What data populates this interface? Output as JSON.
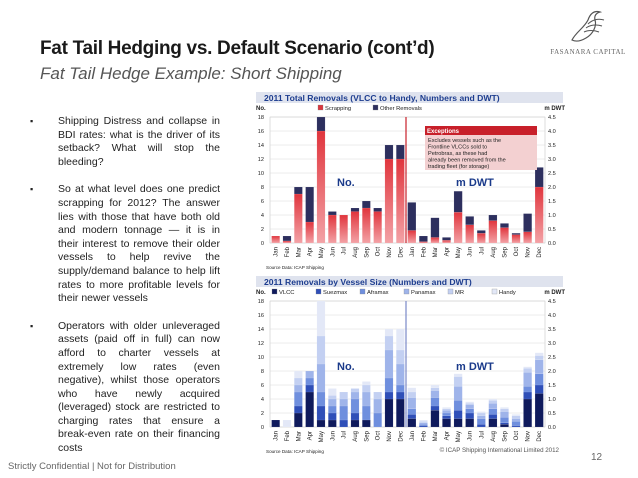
{
  "slide": {
    "title": "Fat Tail Hedging vs. Default Scenario (cont’d)",
    "subtitle": "Fat Tail Hedge Example: Short Shipping",
    "footer": "Strictly Confidential | Not for Distribution",
    "page_number": "12",
    "logo_name": "FASANARA CAPITAL",
    "bullet_mark": "▪",
    "bullets": [
      "Shipping Distress and collapse in BDI rates: what is the driver of its setback? What will stop the bleeding?",
      "So at what level does one predict scrapping for 2012? The answer lies with those that have both old and modern tonnage — it is in their interest to remove their older vessels to help revive the supply/demand balance to help lift rates to more profitable levels for their newer vessels",
      "Operators with older unleveraged assets (paid off in full) can now afford to charter vessels at extremely low rates (even negative), whilst those operators who have newly acquired (leveraged) stock are restricted to charging rates that ensure a break-even rate on their financing costs"
    ]
  },
  "chart_data": [
    {
      "type": "bar",
      "stacked": true,
      "title": "2011 Total Removals (VLCC to Handy, Numbers and DWT)",
      "left_axis_label": "No.",
      "right_axis_label": "m DWT",
      "left_panel_label": "No.",
      "right_panel_label": "m DWT",
      "left_ticks": [
        "0",
        "2",
        "4",
        "6",
        "8",
        "10",
        "12",
        "14",
        "16",
        "18"
      ],
      "right_ticks": [
        "0.0",
        "0.5",
        "1.0",
        "1.5",
        "2.0",
        "2.5",
        "3.0",
        "3.5",
        "4.0",
        "4.5"
      ],
      "left_ylim": [
        0,
        18
      ],
      "right_ylim": [
        0,
        4.5
      ],
      "categories": [
        "Jan",
        "Feb",
        "Mar",
        "Apr",
        "May",
        "Jun",
        "Jul",
        "Aug",
        "Sep",
        "Oct",
        "Nov",
        "Dec"
      ],
      "source": "Source Data: ICAP Shipping",
      "annotation_title": "Exceptions",
      "annotation_text": "Excludes vessels such as the Frontline VLCCs sold to Petrobras, as these had already been removed from the trading fleet (for storage)",
      "grid": true,
      "legend_position": "top-center",
      "series": [
        {
          "name": "Scrapping",
          "color": "#d9363e",
          "left_values": [
            1,
            0.3,
            7,
            3,
            16,
            4,
            4,
            4.5,
            5,
            4.5,
            12,
            12
          ],
          "right_values": [
            0.45,
            0.05,
            0.2,
            0.1,
            1.1,
            0.65,
            0.35,
            0.8,
            0.55,
            0.3,
            0.4,
            2.0
          ]
        },
        {
          "name": "Other Removals",
          "color": "#2d2f5e",
          "left_values": [
            0,
            0.7,
            1,
            5,
            2,
            0.5,
            0,
            0.5,
            1,
            0.5,
            2,
            2
          ],
          "right_values": [
            1.0,
            0.2,
            0.7,
            0.1,
            0.75,
            0.3,
            0.1,
            0.2,
            0.15,
            0.05,
            0.65,
            0.7
          ]
        }
      ]
    },
    {
      "type": "bar",
      "stacked": true,
      "title": "2011 Removals by Vessel Size (Numbers and DWT)",
      "left_axis_label": "No.",
      "right_axis_label": "m DWT",
      "left_panel_label": "No.",
      "right_panel_label": "m DWT",
      "left_ticks": [
        "0",
        "2",
        "4",
        "6",
        "8",
        "10",
        "12",
        "14",
        "16",
        "18"
      ],
      "right_ticks": [
        "0.0",
        "0.5",
        "1.0",
        "1.5",
        "2.0",
        "2.5",
        "3.0",
        "3.5",
        "4.0",
        "4.5"
      ],
      "left_ylim": [
        0,
        18
      ],
      "right_ylim": [
        0,
        4.5
      ],
      "categories": [
        "Jan",
        "Feb",
        "Mar",
        "Apr",
        "May",
        "Jun",
        "Jul",
        "Aug",
        "Sep",
        "Oct",
        "Nov",
        "Dec"
      ],
      "source": "Source Data: ICAP Shipping",
      "copyright": "© ICAP Shipping International Limited 2012",
      "grid": true,
      "legend_position": "top",
      "series": [
        {
          "name": "VLCC",
          "color": "#0f1a5c",
          "left_values": [
            1,
            0,
            2,
            5,
            1,
            1,
            0,
            1,
            1,
            0,
            4,
            4
          ],
          "right_values": [
            0.3,
            0,
            0.6,
            0.3,
            0.3,
            0.3,
            0,
            0.3,
            0.1,
            0,
            1.0,
            1.2
          ]
        },
        {
          "name": "Suezmax",
          "color": "#2f4fb8",
          "left_values": [
            0,
            0,
            1,
            1,
            2,
            1,
            1,
            1,
            0,
            0,
            1,
            1
          ],
          "right_values": [
            0.15,
            0.05,
            0.15,
            0.1,
            0.3,
            0.2,
            0.1,
            0.15,
            0.05,
            0.05,
            0.25,
            0.3
          ]
        },
        {
          "name": "Aframax",
          "color": "#6f8fde",
          "left_values": [
            0,
            0,
            2,
            1,
            2,
            1,
            2,
            2,
            2,
            2,
            2,
            1
          ],
          "right_values": [
            0.2,
            0.05,
            0.3,
            0.1,
            0.35,
            0.15,
            0.2,
            0.2,
            0.2,
            0.15,
            0.2,
            0.4
          ]
        },
        {
          "name": "Panamax",
          "color": "#9fb4ea",
          "left_values": [
            0,
            0,
            1,
            1,
            4,
            1,
            1,
            1,
            2,
            2,
            4,
            3
          ],
          "right_values": [
            0.4,
            0.05,
            0.25,
            0.1,
            0.5,
            0.15,
            0.1,
            0.2,
            0.2,
            0.1,
            0.5,
            0.5
          ]
        },
        {
          "name": "MR",
          "color": "#c3d0f2",
          "left_values": [
            0,
            0,
            1,
            0,
            4,
            0.5,
            1,
            0.5,
            1,
            1,
            2,
            2
          ],
          "right_values": [
            0.2,
            0.05,
            0.1,
            0.05,
            0.35,
            0.05,
            0.1,
            0.1,
            0.1,
            0.1,
            0.15,
            0.15
          ]
        },
        {
          "name": "Handy",
          "color": "#e3e8f7",
          "left_values": [
            0,
            1,
            1,
            0,
            5,
            1,
            0,
            0,
            0.5,
            0,
            1,
            3
          ],
          "right_values": [
            0.15,
            0.05,
            0.1,
            0.05,
            0.1,
            0.05,
            0.05,
            0.05,
            0.05,
            0.05,
            0.05,
            0.1
          ]
        }
      ]
    }
  ]
}
